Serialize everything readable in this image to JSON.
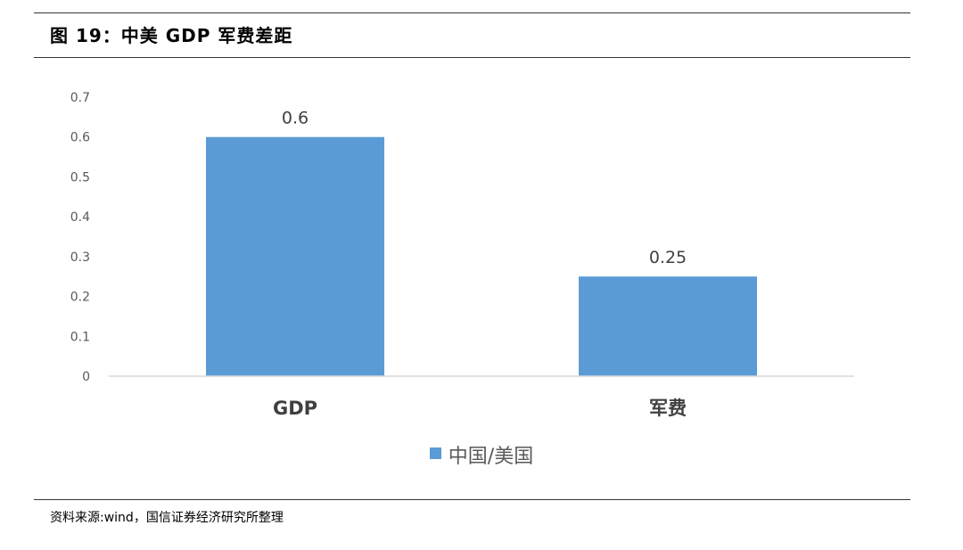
{
  "title": "图 19：中美 GDP 军费差距",
  "source": "资料来源:wind，国信证券经济研究所整理",
  "colors": {
    "bar": "#5b9bd5",
    "axis": "#d9d9d9",
    "tick": "#595959",
    "label": "#404040"
  },
  "chart_data": {
    "type": "bar",
    "title": "",
    "xlabel": "",
    "ylabel": "",
    "categories": [
      "GDP",
      "军费"
    ],
    "series": [
      {
        "name": "中国/美国",
        "values": [
          0.6,
          0.25
        ],
        "data_labels": [
          "0.6",
          "0.25"
        ]
      }
    ],
    "ylim": [
      0,
      0.7
    ],
    "yticks": [
      0,
      0.1,
      0.2,
      0.3,
      0.4,
      0.5,
      0.6,
      0.7
    ],
    "ytick_labels": [
      "0",
      "0.1",
      "0.2",
      "0.3",
      "0.4",
      "0.5",
      "0.6",
      "0.7"
    ],
    "grid": false,
    "legend": "bottom"
  }
}
